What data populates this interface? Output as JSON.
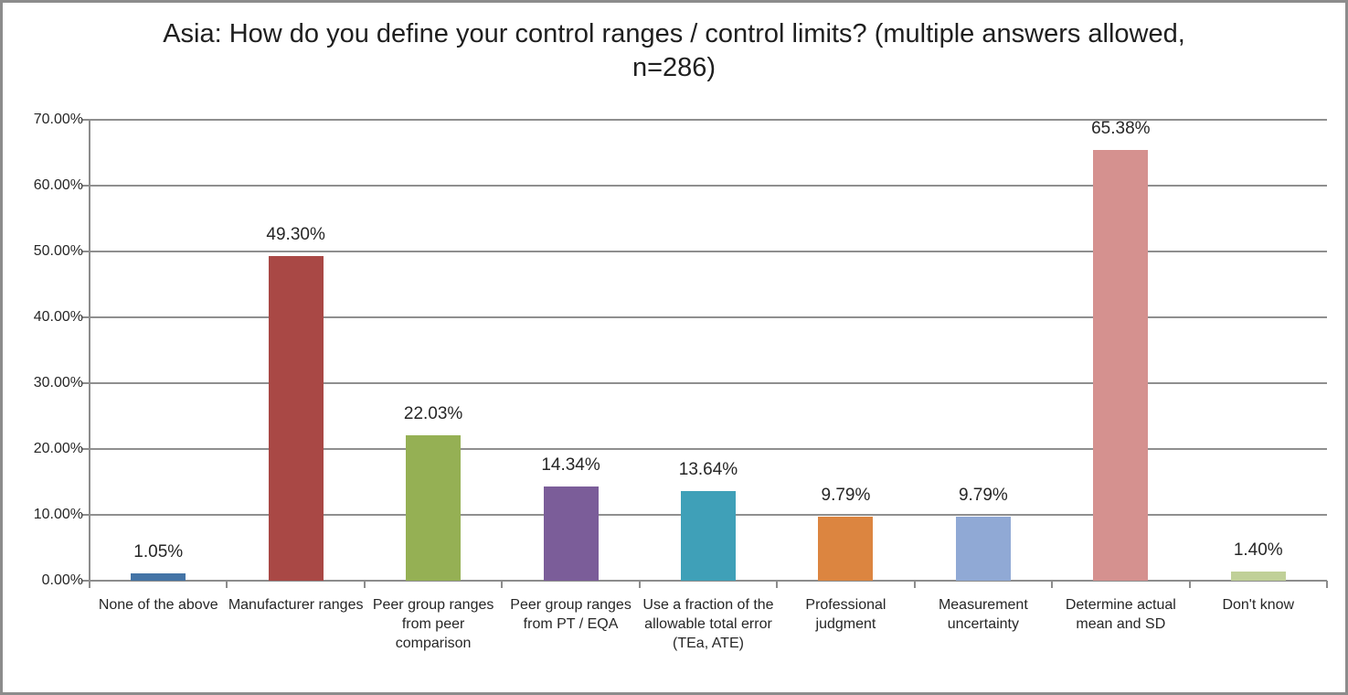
{
  "chart_data": {
    "type": "bar",
    "title": "Asia: How do you define your control ranges / control limits? (multiple answers allowed, n=286)",
    "categories": [
      "None of the above",
      "Manufacturer ranges",
      "Peer group ranges from peer comparison",
      "Peer group ranges from PT / EQA",
      "Use a fraction of the allowable total error (TEa, ATE)",
      "Professional judgment",
      "Measurement uncertainty",
      "Determine actual mean and SD",
      "Don't know"
    ],
    "values": [
      1.05,
      49.3,
      22.03,
      14.34,
      13.64,
      9.79,
      9.79,
      65.38,
      1.4
    ],
    "value_labels": [
      "1.05%",
      "49.30%",
      "22.03%",
      "14.34%",
      "13.64%",
      "9.79%",
      "9.79%",
      "65.38%",
      "1.40%"
    ],
    "bar_colors": [
      "#4474A6",
      "#A94845",
      "#95B054",
      "#7B5D99",
      "#3FA0B8",
      "#DC8540",
      "#90A9D5",
      "#D5918F",
      "#C0D098"
    ],
    "y_tick_labels": [
      "0.00%",
      "10.00%",
      "20.00%",
      "30.00%",
      "40.00%",
      "50.00%",
      "60.00%",
      "70.00%"
    ],
    "ylabel": "",
    "xlabel": "",
    "ylim": [
      0,
      70
    ],
    "y_step": 10,
    "grid": true,
    "legend_position": "none",
    "axis_color": "#8C8C8C",
    "gridline_color": "#8F8F8F",
    "text_color": "#262626",
    "frame_border_color": "#8C8C8C",
    "background_color": "#FFFFFF"
  }
}
